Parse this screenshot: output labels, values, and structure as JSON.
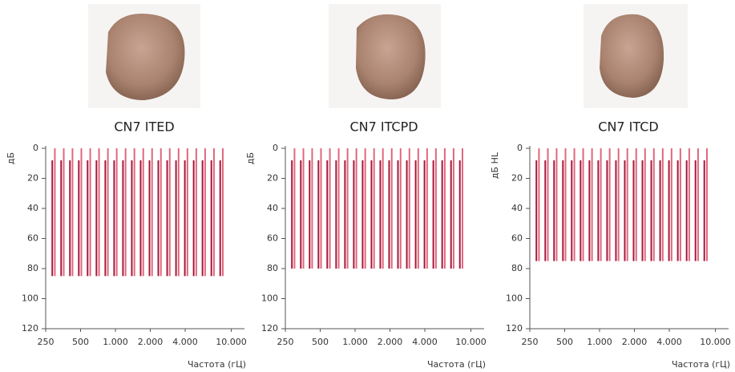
{
  "chart_data": [
    {
      "type": "range",
      "title": "CN7 ITED",
      "ylabel": "дБ",
      "xlabel": "Частота (гЦ)",
      "xlog": true,
      "xlim": [
        250,
        13000
      ],
      "xticks": [
        250,
        500,
        {
          "value": 1000,
          "label": "1.000"
        },
        {
          "value": 2000,
          "label": "2.000"
        },
        {
          "value": 4000,
          "label": "4.000"
        },
        {
          "value": 10000,
          "label": "10.000"
        }
      ],
      "ylim": [
        120,
        0
      ],
      "yticks": [
        0,
        20,
        40,
        60,
        80,
        100,
        120
      ],
      "series": [
        {
          "color": "#e0677b",
          "top": 0,
          "bottom": 85,
          "x": [
            300,
            358,
            426,
            508,
            606,
            722,
            861,
            1026,
            1223,
            1458,
            1738,
            2072,
            2470,
            2944,
            3510,
            4184,
            4988,
            5946,
            7088,
            8450
          ]
        },
        {
          "color": "#a8173a",
          "top": 8,
          "bottom": 85,
          "x": [
            285,
            340,
            405,
            483,
            575,
            686,
            818,
            975,
            1162,
            1385,
            1651,
            1968,
            2346,
            2797,
            3334,
            3974,
            4738,
            5648,
            6733,
            8026
          ]
        }
      ]
    },
    {
      "type": "range",
      "title": "CN7 ITCPD",
      "ylabel": "дБ",
      "xlabel": "Частота (гЦ)",
      "xlog": true,
      "xlim": [
        250,
        13000
      ],
      "xticks": [
        250,
        500,
        {
          "value": 1000,
          "label": "1.000"
        },
        {
          "value": 2000,
          "label": "2.000"
        },
        {
          "value": 4000,
          "label": "4.000"
        },
        {
          "value": 10000,
          "label": "10.000"
        }
      ],
      "ylim": [
        120,
        0
      ],
      "yticks": [
        0,
        20,
        40,
        60,
        80,
        100,
        120
      ],
      "series": [
        {
          "color": "#e0677b",
          "top": 0,
          "bottom": 80,
          "x": [
            300,
            358,
            426,
            508,
            606,
            722,
            861,
            1026,
            1223,
            1458,
            1738,
            2072,
            2470,
            2944,
            3510,
            4184,
            4988,
            5946,
            7088,
            8450
          ]
        },
        {
          "color": "#a8173a",
          "top": 8,
          "bottom": 80,
          "x": [
            285,
            340,
            405,
            483,
            575,
            686,
            818,
            975,
            1162,
            1385,
            1651,
            1968,
            2346,
            2797,
            3334,
            3974,
            4738,
            5648,
            6733,
            8026
          ]
        }
      ]
    },
    {
      "type": "range",
      "title": "CN7 ITCD",
      "ylabel": "дБ HL",
      "xlabel": "Частота (гЦ)",
      "xlog": true,
      "xlim": [
        250,
        13000
      ],
      "xticks": [
        250,
        500,
        {
          "value": 1000,
          "label": "1.000"
        },
        {
          "value": 2000,
          "label": "2.000"
        },
        {
          "value": 4000,
          "label": "4.000"
        },
        {
          "value": 10000,
          "label": "10.000"
        }
      ],
      "ylim": [
        120,
        0
      ],
      "yticks": [
        0,
        20,
        40,
        60,
        80,
        100,
        120
      ],
      "series": [
        {
          "color": "#e0677b",
          "top": 0,
          "bottom": 75,
          "x": [
            300,
            358,
            426,
            508,
            606,
            722,
            861,
            1026,
            1223,
            1458,
            1738,
            2072,
            2470,
            2944,
            3510,
            4184,
            4988,
            5946,
            7088,
            8450
          ]
        },
        {
          "color": "#a8173a",
          "top": 8,
          "bottom": 75,
          "x": [
            285,
            340,
            405,
            483,
            575,
            686,
            818,
            975,
            1162,
            1385,
            1651,
            1968,
            2346,
            2797,
            3334,
            3974,
            4738,
            5648,
            6733,
            8026
          ]
        }
      ]
    }
  ]
}
